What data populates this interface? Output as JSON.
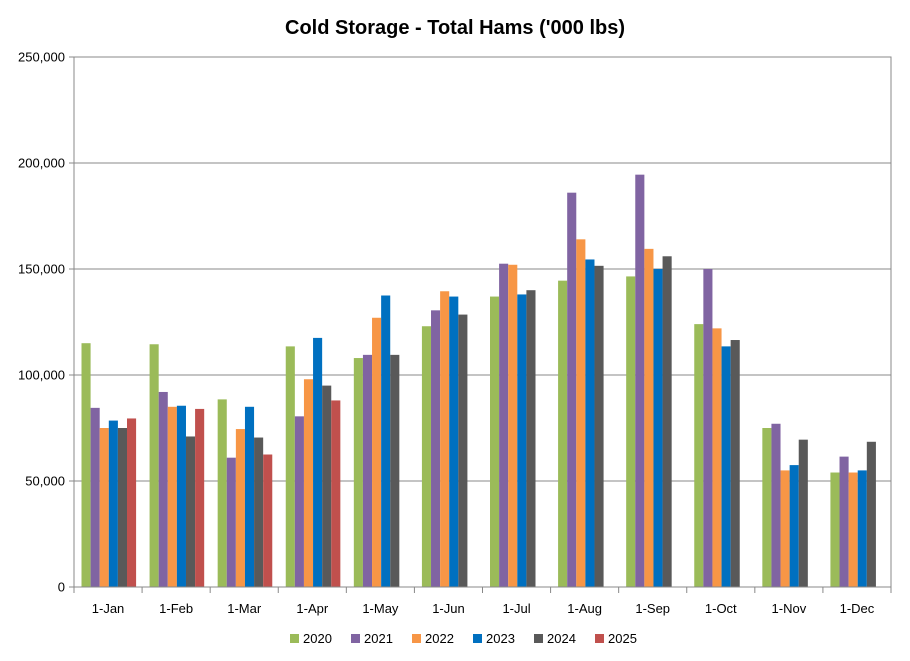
{
  "chart_data": {
    "type": "bar",
    "title": "Cold Storage - Total Hams ('000 lbs)",
    "xlabel": "",
    "ylabel": "",
    "ylim": [
      0,
      250000
    ],
    "yticks": [
      0,
      50000,
      100000,
      150000,
      200000,
      250000
    ],
    "ytick_labels": [
      "0",
      "50,000",
      "100,000",
      "150,000",
      "200,000",
      "250,000"
    ],
    "grid": true,
    "legend": "bottom",
    "categories": [
      "1-Jan",
      "1-Feb",
      "1-Mar",
      "1-Apr",
      "1-May",
      "1-Jun",
      "1-Jul",
      "1-Aug",
      "1-Sep",
      "1-Oct",
      "1-Nov",
      "1-Dec"
    ],
    "series": [
      {
        "name": "2020",
        "color": "#9BBB59",
        "values": [
          115000,
          114500,
          88500,
          113500,
          108000,
          123000,
          137000,
          144500,
          146500,
          124000,
          75000,
          54000
        ]
      },
      {
        "name": "2021",
        "color": "#8064A2",
        "values": [
          84500,
          92000,
          61000,
          80500,
          109500,
          130500,
          152500,
          186000,
          194500,
          150000,
          77000,
          61500
        ]
      },
      {
        "name": "2022",
        "color": "#F79646",
        "values": [
          75000,
          85000,
          74500,
          98000,
          127000,
          139500,
          152000,
          164000,
          159500,
          122000,
          55000,
          54000
        ]
      },
      {
        "name": "2023",
        "color": "#0070C0",
        "values": [
          78500,
          85500,
          85000,
          117500,
          137500,
          137000,
          138000,
          154500,
          150000,
          113500,
          57500,
          55000
        ]
      },
      {
        "name": "2024",
        "color": "#595959",
        "values": [
          75000,
          71000,
          70500,
          95000,
          109500,
          128500,
          140000,
          151500,
          156000,
          116500,
          69500,
          68500
        ]
      },
      {
        "name": "2025",
        "color": "#C0504D",
        "values": [
          79500,
          84000,
          62500,
          88000,
          null,
          null,
          null,
          null,
          null,
          null,
          null,
          null
        ]
      }
    ]
  }
}
